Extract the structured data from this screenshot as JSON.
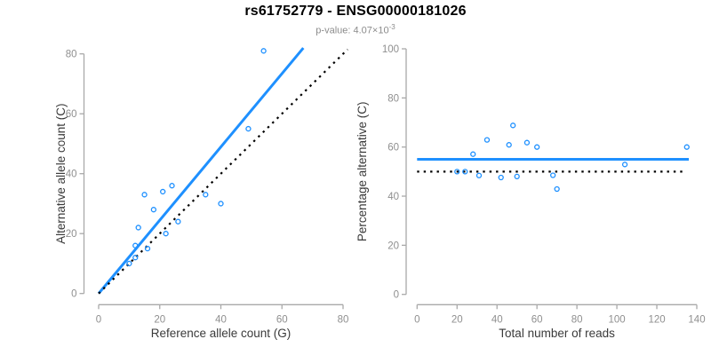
{
  "header": {
    "title": "rs61752779 - ENSG00000181026",
    "pvalue_prefix": "p-value: 4.07×10",
    "pvalue_exponent": "-3"
  },
  "colors": {
    "accent_blue": "#1E90FF",
    "dotted_black": "#000000",
    "axis_gray": "#a9a9a9",
    "tick_label_gray": "#8f8f8f",
    "axis_title_dark": "#3a3a3a"
  },
  "chart_data": [
    {
      "type": "scatter",
      "name": "allele-counts-scatter",
      "xlabel": "Reference allele count (G)",
      "ylabel": "Alternative allele count (C)",
      "xlim": [
        0,
        80
      ],
      "ylim": [
        0,
        80
      ],
      "xticks": [
        0,
        20,
        40,
        60,
        80
      ],
      "yticks": [
        0,
        20,
        40,
        60,
        80
      ],
      "grid": false,
      "legend": false,
      "points": [
        [
          10,
          10
        ],
        [
          12,
          12
        ],
        [
          12,
          16
        ],
        [
          16,
          15
        ],
        [
          13,
          22
        ],
        [
          22,
          20
        ],
        [
          18,
          28
        ],
        [
          15,
          33
        ],
        [
          21,
          34
        ],
        [
          24,
          36
        ],
        [
          26,
          24
        ],
        [
          35,
          33
        ],
        [
          40,
          30
        ],
        [
          49,
          55
        ],
        [
          54,
          81
        ]
      ],
      "lines": [
        {
          "name": "fit-line",
          "style": "solid",
          "color_key": "blue",
          "slope": 1.22,
          "intercept": 0,
          "x1": 0,
          "y1": 0,
          "x2": 67,
          "y2": 81.97
        },
        {
          "name": "identity-line",
          "style": "dotted",
          "color_key": "black",
          "slope": 1,
          "intercept": 0,
          "x1": 0,
          "y1": 0,
          "x2": 81.5,
          "y2": 81.5
        }
      ]
    },
    {
      "type": "scatter",
      "name": "percentage-vs-reads-scatter",
      "xlabel": "Total number of reads",
      "ylabel": "Percentage alternative (C)",
      "xlim": [
        0,
        140
      ],
      "ylim": [
        0,
        100
      ],
      "xticks": [
        0,
        20,
        40,
        60,
        80,
        100,
        120,
        140
      ],
      "yticks": [
        0,
        20,
        40,
        60,
        80,
        100
      ],
      "grid": false,
      "legend": false,
      "points": [
        [
          20,
          50.0
        ],
        [
          24,
          50.0
        ],
        [
          28,
          57.1
        ],
        [
          31,
          48.4
        ],
        [
          35,
          62.9
        ],
        [
          42,
          47.6
        ],
        [
          46,
          60.9
        ],
        [
          48,
          68.8
        ],
        [
          50,
          48.0
        ],
        [
          55,
          61.8
        ],
        [
          60,
          60.0
        ],
        [
          68,
          48.5
        ],
        [
          70,
          42.9
        ],
        [
          104,
          52.9
        ],
        [
          135,
          60.0
        ]
      ],
      "lines": [
        {
          "name": "mean-percentage-line",
          "style": "solid",
          "color_key": "blue",
          "value": 55,
          "x1": 0,
          "y1": 55,
          "x2": 136,
          "y2": 55
        },
        {
          "name": "fifty-percent-line",
          "style": "dotted",
          "color_key": "black",
          "value": 50,
          "x1": 0,
          "y1": 50,
          "x2": 133,
          "y2": 50
        }
      ]
    }
  ]
}
